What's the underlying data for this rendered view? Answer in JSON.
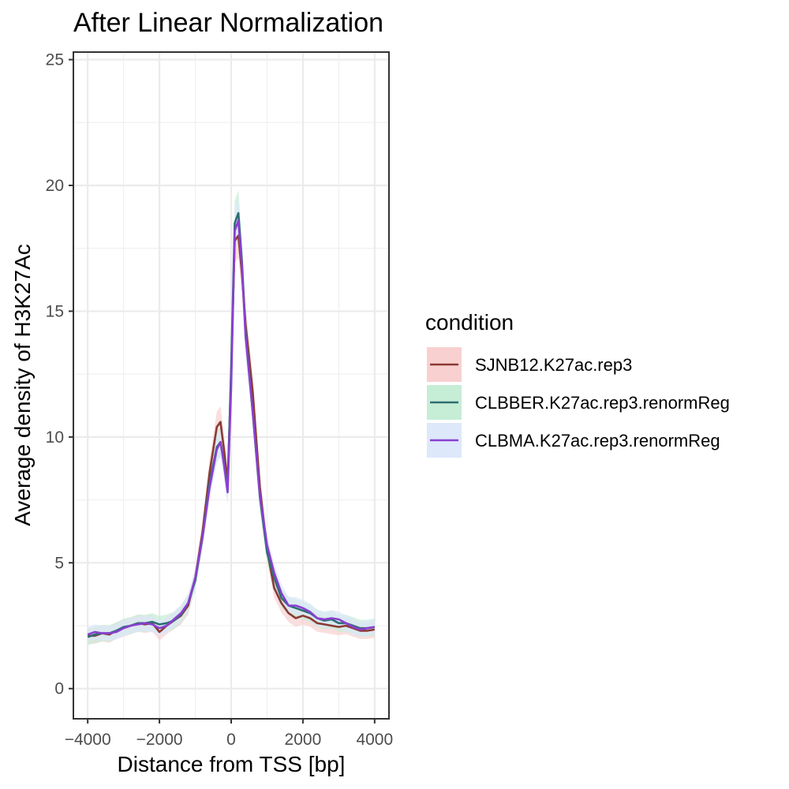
{
  "chart_data": {
    "type": "line",
    "title": "After Linear Normalization",
    "xlabel": "Distance from TSS [bp]",
    "ylabel": "Average density of H3K27Ac",
    "xlim": [
      -4400,
      4400
    ],
    "ylim": [
      -1.2,
      25.3
    ],
    "x_ticks": [
      -4000,
      -2000,
      0,
      2000,
      4000
    ],
    "x_tick_labels": [
      "−4000",
      "−2000",
      "0",
      "2000",
      "4000"
    ],
    "y_ticks": [
      0,
      5,
      10,
      15,
      20,
      25
    ],
    "y_tick_labels": [
      "0",
      "5",
      "10",
      "15",
      "20",
      "25"
    ],
    "grid": true,
    "legend_title": "condition",
    "legend_position": "right",
    "x": [
      -4000,
      -3800,
      -3600,
      -3400,
      -3200,
      -3000,
      -2800,
      -2600,
      -2400,
      -2200,
      -2000,
      -1800,
      -1600,
      -1400,
      -1200,
      -1000,
      -800,
      -600,
      -400,
      -300,
      -200,
      -100,
      0,
      100,
      200,
      300,
      400,
      600,
      800,
      1000,
      1200,
      1400,
      1600,
      1800,
      2000,
      2200,
      2400,
      2600,
      2800,
      3000,
      3200,
      3400,
      3600,
      3800,
      4000
    ],
    "series": [
      {
        "name": "SJNB12.K27ac.rep3",
        "line_color": "#8b3a35",
        "band_color": "#f8d0d0",
        "values": [
          2.1,
          2.1,
          2.2,
          2.15,
          2.3,
          2.4,
          2.5,
          2.6,
          2.55,
          2.6,
          2.25,
          2.5,
          2.7,
          2.9,
          3.3,
          4.4,
          6.2,
          8.6,
          10.4,
          10.6,
          9.5,
          8.2,
          12.5,
          17.8,
          18.0,
          16.5,
          14.5,
          11.8,
          8.0,
          5.5,
          4.0,
          3.4,
          3.0,
          2.8,
          2.9,
          2.8,
          2.6,
          2.55,
          2.5,
          2.45,
          2.5,
          2.4,
          2.3,
          2.3,
          2.35
        ]
      },
      {
        "name": "CLBBER.K27ac.rep3.renormReg",
        "line_color": "#2e6e72",
        "band_color": "#c6edd6",
        "values": [
          2.05,
          2.15,
          2.2,
          2.2,
          2.3,
          2.45,
          2.5,
          2.6,
          2.6,
          2.65,
          2.55,
          2.6,
          2.7,
          2.95,
          3.4,
          4.3,
          6.0,
          8.2,
          9.6,
          9.8,
          9.0,
          7.9,
          12.8,
          18.5,
          18.9,
          17.0,
          14.2,
          11.0,
          7.6,
          5.4,
          4.4,
          3.6,
          3.3,
          3.2,
          3.1,
          3.0,
          2.8,
          2.7,
          2.75,
          2.6,
          2.6,
          2.5,
          2.4,
          2.4,
          2.45
        ]
      },
      {
        "name": "CLBMA.K27ac.rep3.renormReg",
        "line_color": "#8a3fd1",
        "band_color": "#dde8fb",
        "values": [
          2.15,
          2.25,
          2.2,
          2.2,
          2.25,
          2.4,
          2.5,
          2.55,
          2.6,
          2.55,
          2.4,
          2.5,
          2.75,
          3.0,
          3.4,
          4.4,
          6.0,
          8.0,
          9.5,
          9.8,
          8.9,
          7.8,
          12.0,
          18.2,
          18.6,
          16.8,
          14.0,
          11.0,
          7.7,
          5.7,
          4.6,
          3.8,
          3.3,
          3.3,
          3.2,
          3.05,
          2.8,
          2.75,
          2.8,
          2.75,
          2.6,
          2.45,
          2.35,
          2.4,
          2.45
        ]
      }
    ]
  }
}
